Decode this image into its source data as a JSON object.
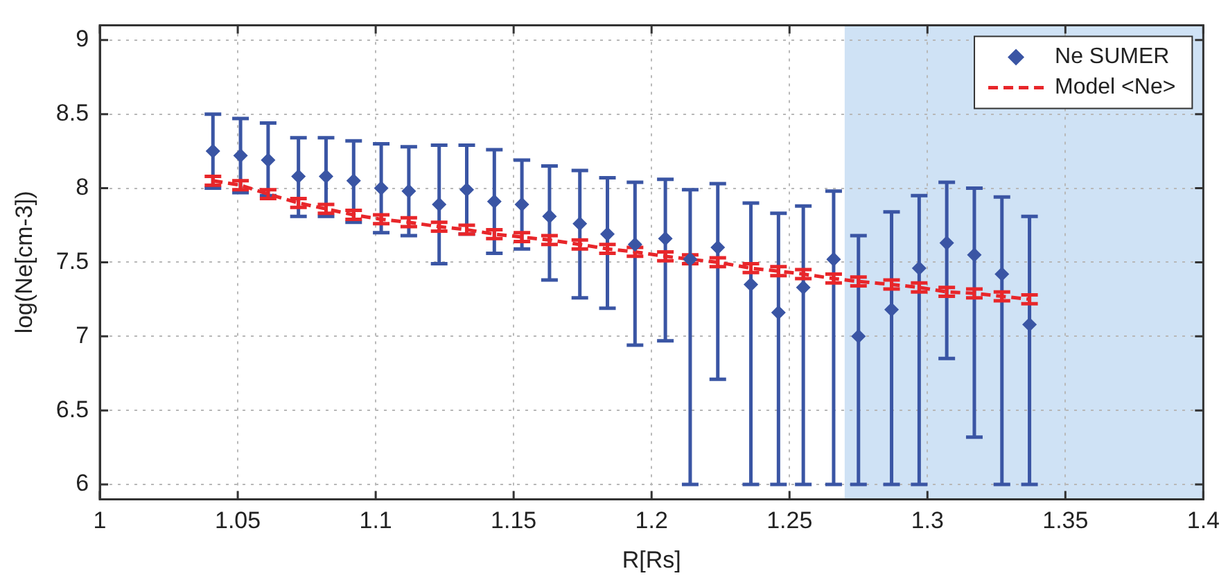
{
  "chart_data": {
    "type": "scatter",
    "xlabel": "R[Rs]",
    "ylabel": "log(Ne[cm-3])",
    "x": [
      1.041,
      1.051,
      1.061,
      1.072,
      1.082,
      1.092,
      1.102,
      1.112,
      1.123,
      1.133,
      1.143,
      1.153,
      1.163,
      1.174,
      1.184,
      1.194,
      1.205,
      1.214,
      1.224,
      1.236,
      1.246,
      1.255,
      1.266,
      1.275,
      1.287,
      1.297,
      1.307,
      1.317,
      1.327,
      1.337
    ],
    "series": [
      {
        "name": "Ne SUMER",
        "color": "#3a55a4",
        "marker": "diamond",
        "values": [
          8.25,
          8.22,
          8.19,
          8.08,
          8.08,
          8.05,
          8.0,
          7.98,
          7.89,
          7.99,
          7.91,
          7.89,
          7.81,
          7.76,
          7.69,
          7.62,
          7.66,
          7.52,
          7.6,
          7.35,
          7.16,
          7.33,
          7.52,
          7.0,
          7.18,
          7.46,
          7.63,
          7.55,
          7.42,
          7.08
        ],
        "errors": [
          [
            8.0,
            8.5
          ],
          [
            7.97,
            8.47
          ],
          [
            7.95,
            8.44
          ],
          [
            7.81,
            8.34
          ],
          [
            7.81,
            8.34
          ],
          [
            7.77,
            8.32
          ],
          [
            7.7,
            8.3
          ],
          [
            7.68,
            8.28
          ],
          [
            7.49,
            8.29
          ],
          [
            7.69,
            8.29
          ],
          [
            7.56,
            8.26
          ],
          [
            7.59,
            8.19
          ],
          [
            7.38,
            8.15
          ],
          [
            7.26,
            8.12
          ],
          [
            7.19,
            8.07
          ],
          [
            6.94,
            8.04
          ],
          [
            6.97,
            8.06
          ],
          [
            6.0,
            7.99
          ],
          [
            6.71,
            8.03
          ],
          [
            6.0,
            7.9
          ],
          [
            6.0,
            7.83
          ],
          [
            6.0,
            7.88
          ],
          [
            6.0,
            7.98
          ],
          [
            6.0,
            7.68
          ],
          [
            6.0,
            7.84
          ],
          [
            6.0,
            7.95
          ],
          [
            6.85,
            8.04
          ],
          [
            6.32,
            8.0
          ],
          [
            6.0,
            7.94
          ],
          [
            6.0,
            7.81
          ]
        ]
      },
      {
        "name": "Model <Ne>",
        "type": "line",
        "color": "#e8262a",
        "marker": "none",
        "line_style": "dashed",
        "values": [
          8.05,
          8.02,
          7.96,
          7.9,
          7.86,
          7.82,
          7.79,
          7.77,
          7.74,
          7.72,
          7.69,
          7.67,
          7.65,
          7.62,
          7.59,
          7.57,
          7.54,
          7.52,
          7.5,
          7.46,
          7.44,
          7.42,
          7.39,
          7.37,
          7.35,
          7.33,
          7.3,
          7.29,
          7.27,
          7.25
        ],
        "errors": [
          0.03,
          0.03,
          0.03,
          0.03,
          0.03,
          0.03,
          0.03,
          0.03,
          0.03,
          0.03,
          0.03,
          0.03,
          0.03,
          0.03,
          0.03,
          0.03,
          0.03,
          0.03,
          0.03,
          0.03,
          0.03,
          0.03,
          0.03,
          0.03,
          0.03,
          0.03,
          0.03,
          0.03,
          0.03,
          0.03
        ]
      }
    ],
    "xlim": [
      1,
      1.4
    ],
    "xticks": [
      1,
      1.05,
      1.1,
      1.15,
      1.2,
      1.25,
      1.3,
      1.35,
      1.4
    ],
    "ylim": [
      5.9,
      9.1
    ],
    "yticks": [
      6,
      6.5,
      7,
      7.5,
      8,
      8.5,
      9
    ],
    "bands": [
      {
        "axis": "x",
        "from": 1.27,
        "to": 1.4,
        "color": "#cfe2f5"
      }
    ],
    "grid": true,
    "legend": "top right"
  }
}
